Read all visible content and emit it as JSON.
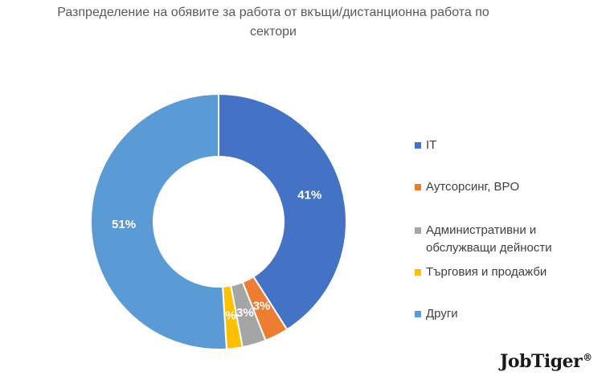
{
  "chart_data": {
    "type": "pie",
    "title": "Разпределение на обявите за работа от вкъщи/дистанционна работа по сектори",
    "title_lines": [
      "Разпределение на обявите за работа от вкъщи/дистанционна работа по",
      "сектори"
    ],
    "donut": true,
    "categories": [
      "IT",
      "Аутсорсинг, BPO",
      "Административни и обслужващи дейности",
      "Търговия и продажби",
      "Други"
    ],
    "values": [
      41,
      3,
      3,
      2,
      51
    ],
    "data_labels": [
      "41%",
      "3%",
      "3%",
      "2%",
      "51%"
    ],
    "colors": [
      "#4472C4",
      "#ED7D31",
      "#A5A5A5",
      "#FFC000",
      "#5B9BD5"
    ],
    "legend_position": "right"
  },
  "legend": {
    "items": [
      {
        "label": "IT",
        "color": "#4472C4"
      },
      {
        "label": "Аутсорсинг, BPO",
        "color": "#ED7D31"
      },
      {
        "label": "Административни и\nобслужващи дейности",
        "color": "#A5A5A5"
      },
      {
        "label": "Търговия и продажби",
        "color": "#FFC000"
      },
      {
        "label": "Други",
        "color": "#5B9BD5"
      }
    ]
  },
  "brand": {
    "name": "JobTiger",
    "mark": "®"
  }
}
